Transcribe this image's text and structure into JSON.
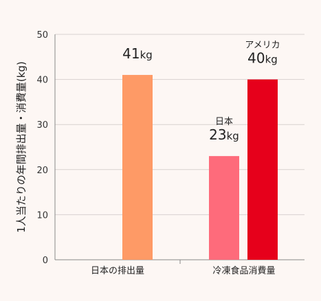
{
  "background": "#fdf7f4",
  "chart_data": {
    "type": "bar",
    "ylabel": "1人当たりの年間排出量・消費量(kg)",
    "ylim": [
      0,
      50
    ],
    "yticks": [
      0,
      10,
      20,
      30,
      40,
      50
    ],
    "grid": "y",
    "categories": [
      "日本の排出量",
      "冷凍食品消費量"
    ],
    "bars": [
      {
        "category": "日本の排出量",
        "value": 41,
        "color": "#fe9a66",
        "label_name": "",
        "label_value": "41",
        "label_unit": "kg"
      },
      {
        "category": "冷凍食品消費量",
        "value": 23,
        "color": "#fe6b7b",
        "label_name": "日本",
        "label_value": "23",
        "label_unit": "kg"
      },
      {
        "category": "冷凍食品消費量",
        "value": 40,
        "color": "#e6001b",
        "label_name": "アメリカ",
        "label_value": "40",
        "label_unit": "kg"
      }
    ]
  }
}
